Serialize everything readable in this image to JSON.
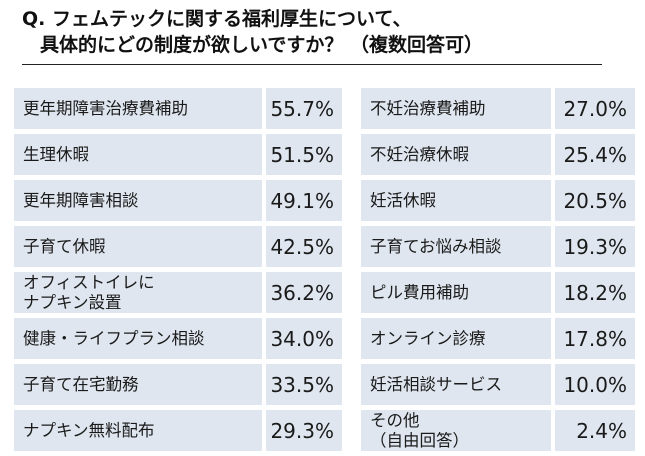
{
  "title": {
    "line1": "Q. フェムテックに関する福利厚生について、",
    "line2": "具体的にどの制度が欲しいですか？ （複数回答可）"
  },
  "left_items": [
    {
      "label": "更年期障害治療費補助",
      "value": "55.7%"
    },
    {
      "label": "生理休暇",
      "value": "51.5%"
    },
    {
      "label": "更年期障害相談",
      "value": "49.1%"
    },
    {
      "label": "子育て休暇",
      "value": "42.5%"
    },
    {
      "label": "オフィストイレに\nナプキン設置",
      "value": "36.2%"
    },
    {
      "label": "健康・ライフプラン相談",
      "value": "34.0%"
    },
    {
      "label": "子育て在宅勤務",
      "value": "33.5%"
    },
    {
      "label": "ナプキン無料配布",
      "value": "29.3%"
    }
  ],
  "right_items": [
    {
      "label": "不妊治療費補助",
      "value": "27.0%"
    },
    {
      "label": "不妊治療休暇",
      "value": "25.4%"
    },
    {
      "label": "妊活休暇",
      "value": "20.5%"
    },
    {
      "label": "子育てお悩み相談",
      "value": "19.3%"
    },
    {
      "label": "ピル費用補助",
      "value": "18.2%"
    },
    {
      "label": "オンライン診療",
      "value": "17.8%"
    },
    {
      "label": "妊活相談サービス",
      "value": "10.0%"
    },
    {
      "label": "その他\n（自由回答）",
      "value": "2.4%"
    }
  ]
}
